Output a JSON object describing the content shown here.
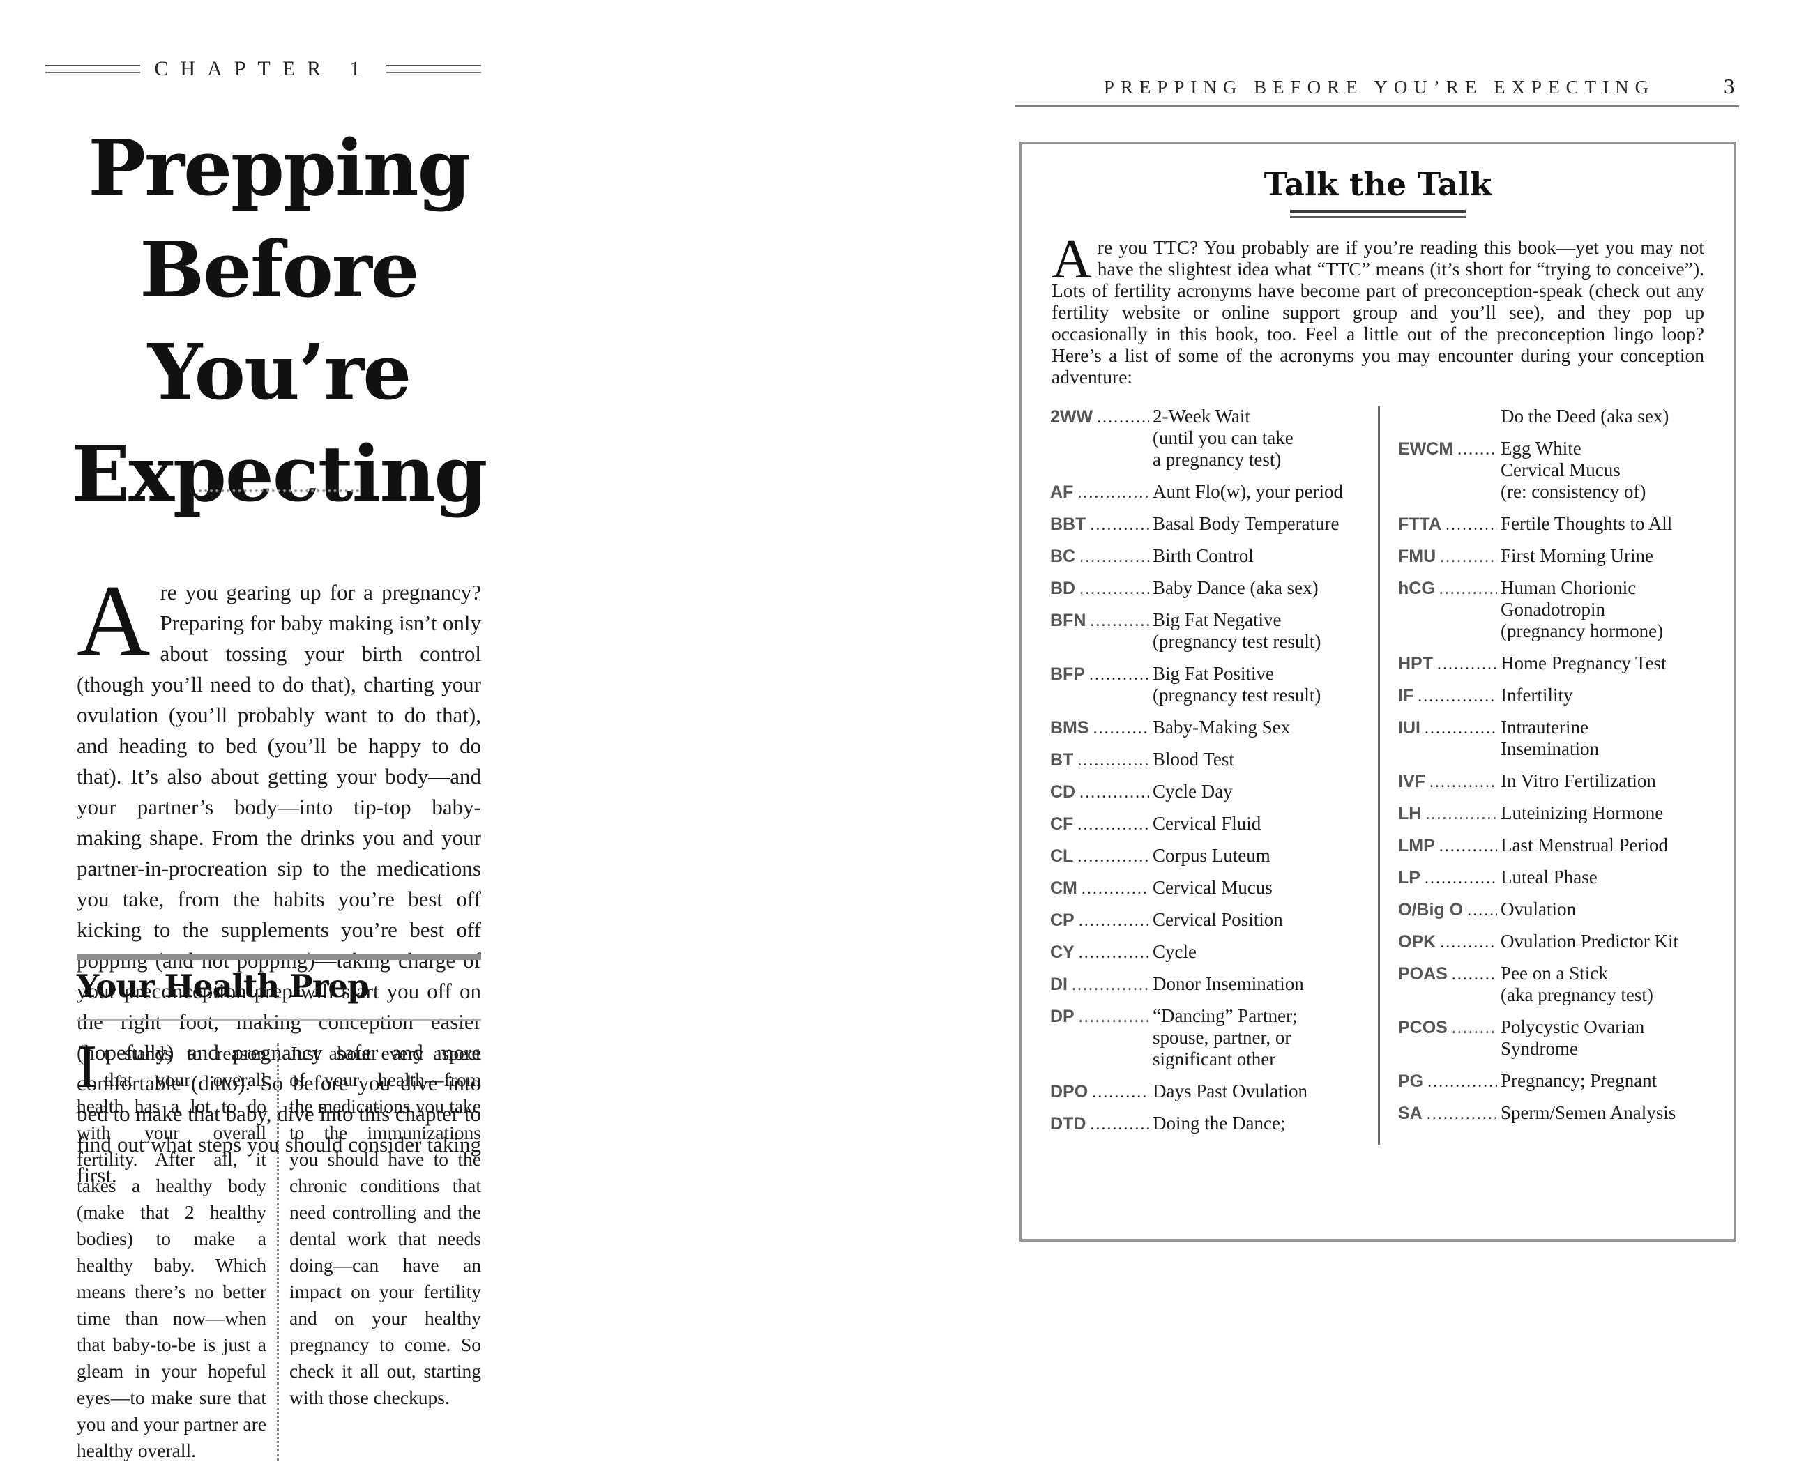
{
  "palette": {
    "text": "#1b1b1b",
    "acronym_gray": "#58585a",
    "rule_gray": "#8d8d8d",
    "box_border": "#959595"
  },
  "left_page": {
    "chapter_label": "CHAPTER 1",
    "title_line1": "Prepping Before",
    "title_line2": "You’re Expecting",
    "intro_dropcap": "A",
    "intro_rest": "re you gearing up for a pregnancy? Preparing for baby making isn’t only about tossing your birth control (though you’ll need to do that), charting your ovulation (you’ll probably want to do that), and heading to bed (you’ll be happy to do that). It’s also about getting your body—and your partner’s body—into tip-top baby-making shape. From the drinks you and your partner-in-procreation sip to the medications you take, from the habits you’re best off kicking to the supplements you’re best off popping (and not popping)—taking charge of your preconception prep will start you off on the right foot, making conception easier (hopefully) and pregnancy safer and more comfortable (ditto). So before you dive into bed to make that baby, dive into this chapter to find out what steps you should consider taking first.",
    "section": {
      "heading": "Your Health Prep",
      "col1_dropcap": "I",
      "col1_rest": "t stands to reason that your overall health has a lot to do with your overall fertility. After all, it takes a healthy body (make that 2 healthy bodies) to make a healthy baby. Which means there’s no better time than now—when that baby-to-be is just a gleam in your hopeful eyes—to make sure that you and your partner are healthy overall.",
      "col2_text": "Just about every aspect of your health—from the medications you take to the immunizations you should have to the chronic conditions that need controlling and the dental work that needs doing—can have an impact on your fertility and on your healthy pregnancy to come. So check it all out, starting with those checkups."
    }
  },
  "right_page": {
    "running_head": "PREPPING BEFORE YOU’RE EXPECTING",
    "page_number": "3",
    "box": {
      "title": "Talk the Talk",
      "intro_dropcap": "A",
      "intro_rest": "re you TTC? You probably are if you’re reading this book—yet you may not have the slightest idea what “TTC” means (it’s short for “trying to conceive”). Lots of fertility acronyms have become part of preconception-speak (check out any fertility website or online support group and you’ll see), and they pop up occasionally in this book, too. Feel a little out of the preconception lingo loop? Here’s a list of some of the acronyms you may encounter during your conception adventure:",
      "left_entries": [
        {
          "acr": "2WW",
          "def": "2-Week Wait\n(until you can take\na pregnancy test)"
        },
        {
          "acr": "AF",
          "def": "Aunt Flo(w), your period"
        },
        {
          "acr": "BBT",
          "def": "Basal Body Temperature"
        },
        {
          "acr": "BC",
          "def": "Birth Control"
        },
        {
          "acr": "BD",
          "def": "Baby Dance (aka sex)"
        },
        {
          "acr": "BFN",
          "def": "Big Fat Negative\n(pregnancy test result)"
        },
        {
          "acr": "BFP",
          "def": "Big Fat Positive\n(pregnancy test result)"
        },
        {
          "acr": "BMS",
          "def": "Baby-Making Sex"
        },
        {
          "acr": "BT",
          "def": "Blood Test"
        },
        {
          "acr": "CD",
          "def": "Cycle Day"
        },
        {
          "acr": "CF",
          "def": "Cervical Fluid"
        },
        {
          "acr": "CL",
          "def": "Corpus Luteum"
        },
        {
          "acr": "CM",
          "def": "Cervical Mucus"
        },
        {
          "acr": "CP",
          "def": "Cervical Position"
        },
        {
          "acr": "CY",
          "def": "Cycle"
        },
        {
          "acr": "DI",
          "def": "Donor Insemination"
        },
        {
          "acr": "DP",
          "def": "“Dancing” Partner;\nspouse, partner, or\nsignificant other"
        },
        {
          "acr": "DPO",
          "def": "Days Past Ovulation"
        },
        {
          "acr": "DTD",
          "def": "Doing the Dance;"
        }
      ],
      "right_entries": [
        {
          "acr": "",
          "def": "Do the Deed (aka sex)"
        },
        {
          "acr": "EWCM",
          "def": "Egg White\nCervical Mucus\n(re: consistency of)"
        },
        {
          "acr": "FTTA",
          "def": "Fertile Thoughts to All"
        },
        {
          "acr": "FMU",
          "def": "First Morning Urine"
        },
        {
          "acr": "hCG",
          "def": "Human Chorionic\nGonadotropin\n(pregnancy hormone)"
        },
        {
          "acr": "HPT",
          "def": "Home Pregnancy Test"
        },
        {
          "acr": "IF",
          "def": "Infertility"
        },
        {
          "acr": "IUI",
          "def": "Intrauterine\nInsemination"
        },
        {
          "acr": "IVF",
          "def": "In Vitro Fertilization"
        },
        {
          "acr": "LH",
          "def": "Luteinizing Hormone"
        },
        {
          "acr": "LMP",
          "def": "Last Menstrual Period"
        },
        {
          "acr": "LP",
          "def": "Luteal Phase"
        },
        {
          "acr": "O/Big O",
          "def": "Ovulation"
        },
        {
          "acr": "OPK",
          "def": "Ovulation Predictor Kit"
        },
        {
          "acr": "POAS",
          "def": "Pee on a Stick\n(aka pregnancy test)"
        },
        {
          "acr": "PCOS",
          "def": "Polycystic Ovarian\nSyndrome"
        },
        {
          "acr": "PG",
          "def": "Pregnancy; Pregnant"
        },
        {
          "acr": "SA",
          "def": "Sperm/Semen Analysis"
        }
      ]
    }
  }
}
